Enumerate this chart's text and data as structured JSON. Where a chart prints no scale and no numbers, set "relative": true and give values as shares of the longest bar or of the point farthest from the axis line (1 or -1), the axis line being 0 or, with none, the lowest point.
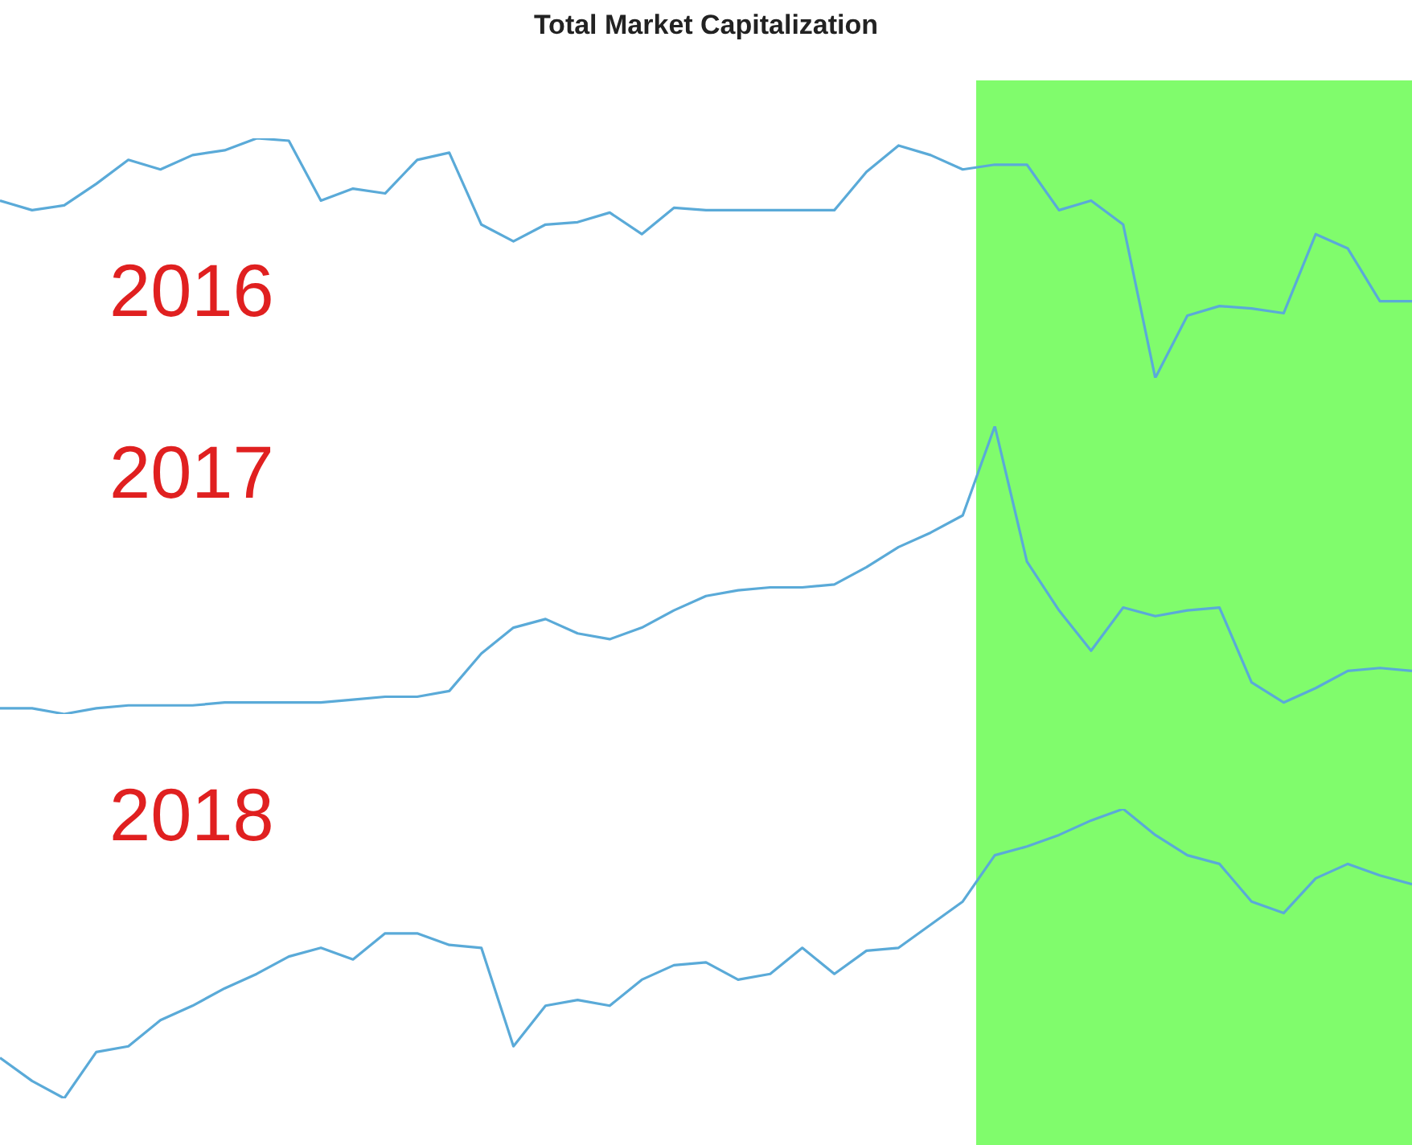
{
  "chart_data": [
    {
      "type": "line",
      "title": "Total Market Capitalization",
      "relative": true,
      "annotations": [
        "2016"
      ],
      "categories": [
        null,
        null,
        null,
        null,
        null,
        null,
        null,
        null,
        null,
        null,
        null,
        null,
        null,
        null,
        null,
        null,
        null,
        null,
        null,
        null,
        null,
        null,
        null,
        null,
        null,
        null,
        null,
        null,
        null,
        null,
        null,
        null,
        null,
        null,
        null,
        null,
        null,
        null,
        null,
        null,
        null,
        null,
        null,
        null,
        null
      ],
      "series": [
        {
          "color": "#5aaad8",
          "values": [
            0.74,
            0.7,
            0.72,
            0.81,
            0.91,
            0.87,
            0.93,
            0.95,
            1,
            0.99,
            0.74,
            0.79,
            0.77,
            0.91,
            0.94,
            0.64,
            0.57,
            0.64,
            0.65,
            0.69,
            0.6,
            0.71,
            0.7,
            0.7,
            0.7,
            0.7,
            0.7,
            0.86,
            0.97,
            0.93,
            0.87,
            0.89,
            0.89,
            0.7,
            0.74,
            0.64,
            0,
            0.26,
            0.3,
            0.29,
            0.27,
            0.6,
            0.54,
            0.32,
            0.32
          ]
        }
      ]
    },
    {
      "type": "line",
      "relative": true,
      "annotations": [
        "2017"
      ],
      "categories": [
        null,
        null,
        null,
        null,
        null,
        null,
        null,
        null,
        null,
        null,
        null,
        null,
        null,
        null,
        null,
        null,
        null,
        null,
        null,
        null,
        null,
        null,
        null,
        null,
        null,
        null,
        null,
        null,
        null,
        null,
        null,
        null,
        null,
        null,
        null,
        null,
        null,
        null,
        null,
        null,
        null,
        null,
        null,
        null,
        null
      ],
      "series": [
        {
          "color": "#5aaad8",
          "values": [
            0.02,
            0.02,
            0,
            0.02,
            0.03,
            0.03,
            0.03,
            0.04,
            0.04,
            0.04,
            0.04,
            0.05,
            0.06,
            0.06,
            0.08,
            0.21,
            0.3,
            0.33,
            0.28,
            0.26,
            0.3,
            0.36,
            0.41,
            0.43,
            0.44,
            0.44,
            0.45,
            0.51,
            0.58,
            0.63,
            0.69,
            1,
            0.53,
            0.36,
            0.22,
            0.37,
            0.34,
            0.36,
            0.37,
            0.11,
            0.04,
            0.09,
            0.15,
            0.16,
            0.15
          ]
        }
      ]
    },
    {
      "type": "line",
      "relative": true,
      "annotations": [
        "2018"
      ],
      "categories": [
        null,
        null,
        null,
        null,
        null,
        null,
        null,
        null,
        null,
        null,
        null,
        null,
        null,
        null,
        null,
        null,
        null,
        null,
        null,
        null,
        null,
        null,
        null,
        null,
        null,
        null,
        null,
        null,
        null,
        null,
        null,
        null,
        null,
        null,
        null,
        null,
        null,
        null,
        null,
        null,
        null,
        null,
        null,
        null,
        null
      ],
      "series": [
        {
          "color": "#5aaad8",
          "values": [
            0.14,
            0.06,
            0,
            0.16,
            0.18,
            0.27,
            0.32,
            0.38,
            0.43,
            0.49,
            0.52,
            0.48,
            0.57,
            0.57,
            0.53,
            0.52,
            0.18,
            0.32,
            0.34,
            0.32,
            0.41,
            0.46,
            0.47,
            0.41,
            0.43,
            0.52,
            0.43,
            0.51,
            0.52,
            0.6,
            0.68,
            0.84,
            0.87,
            0.91,
            0.96,
            1,
            0.91,
            0.84,
            0.81,
            0.68,
            0.64,
            0.76,
            0.81,
            0.77,
            0.74
          ]
        }
      ]
    }
  ]
}
